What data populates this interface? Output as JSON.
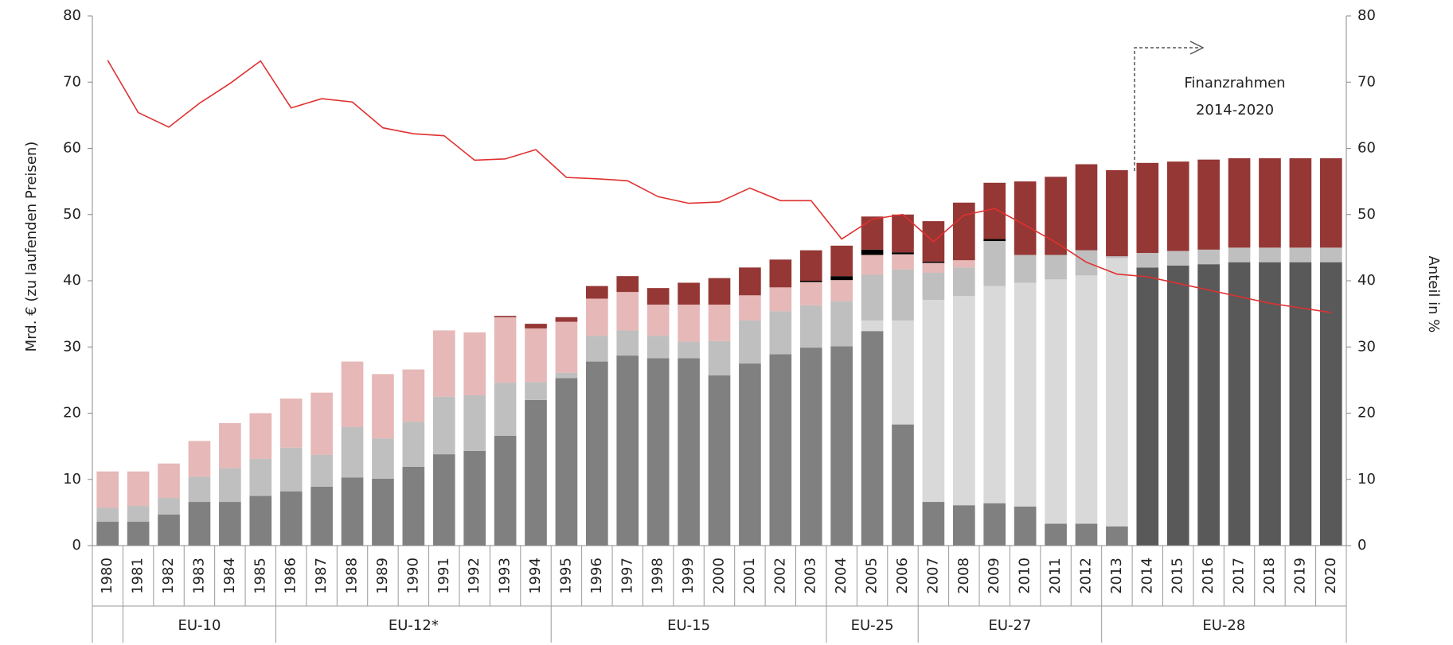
{
  "chart_data": {
    "type": "bar",
    "stacked": true,
    "y_label": "Mrd. € (zu laufenden Preisen)",
    "y2_label": "Anteil in %",
    "annotation": [
      "Finanzrahmen",
      "2014-2020"
    ],
    "categories": [
      "1980",
      "1981",
      "1982",
      "1983",
      "1984",
      "1985",
      "1986",
      "1987",
      "1988",
      "1989",
      "1990",
      "1991",
      "1992",
      "1993",
      "1994",
      "1995",
      "1996",
      "1997",
      "1998",
      "1999",
      "2000",
      "2001",
      "2002",
      "2003",
      "2004",
      "2005",
      "2006",
      "2007",
      "2008",
      "2009",
      "2010",
      "2011",
      "2012",
      "2013",
      "2014",
      "2015",
      "2016",
      "2017",
      "2018",
      "2019",
      "2020"
    ],
    "groups": [
      null,
      "EU-10",
      "EU-10",
      "EU-10",
      "EU-10",
      "EU-10",
      "EU-12*",
      "EU-12*",
      "EU-12*",
      "EU-12*",
      "EU-12*",
      "EU-12*",
      "EU-12*",
      "EU-12*",
      "EU-12*",
      "EU-15",
      "EU-15",
      "EU-15",
      "EU-15",
      "EU-15",
      "EU-15",
      "EU-15",
      "EU-15",
      "EU-15",
      "EU-25",
      "EU-25",
      "EU-25",
      "EU-27",
      "EU-27",
      "EU-27",
      "EU-27",
      "EU-27",
      "EU-27",
      "EU-28",
      "EU-28",
      "EU-28",
      "EU-28",
      "EU-28",
      "EU-28",
      "EU-28",
      "EU-28"
    ],
    "ylim": [
      0,
      80
    ],
    "yticks": [
      0,
      10,
      20,
      30,
      40,
      50,
      60,
      70,
      80
    ],
    "y2lim": [
      0,
      80
    ],
    "y2ticks": [
      0,
      10,
      20,
      30,
      40,
      50,
      60,
      70,
      80
    ],
    "series": [
      {
        "color": "#808080",
        "values": [
          3.6,
          3.6,
          4.7,
          6.6,
          6.6,
          7.5,
          8.2,
          8.9,
          10.3,
          10.1,
          11.9,
          13.8,
          14.3,
          16.6,
          22.0,
          25.3,
          27.8,
          28.7,
          28.3,
          28.3,
          25.7,
          27.5,
          28.9,
          29.9,
          30.1,
          32.4,
          18.3,
          6.6,
          6.1,
          6.4,
          5.9,
          3.3,
          3.3,
          2.9,
          null,
          null,
          null,
          null,
          null,
          null,
          null
        ]
      },
      {
        "color": "#d9d9d9",
        "values": [
          null,
          null,
          null,
          null,
          null,
          null,
          null,
          null,
          null,
          null,
          null,
          null,
          null,
          null,
          null,
          null,
          null,
          null,
          null,
          null,
          null,
          null,
          null,
          null,
          null,
          1.6,
          15.7,
          30.5,
          31.6,
          32.8,
          33.8,
          36.9,
          37.5,
          40.5,
          null,
          null,
          null,
          null,
          null,
          null,
          null
        ]
      },
      {
        "color": "#595959",
        "values": [
          null,
          null,
          null,
          null,
          null,
          null,
          null,
          null,
          null,
          null,
          null,
          null,
          null,
          null,
          null,
          null,
          null,
          null,
          null,
          null,
          null,
          null,
          null,
          null,
          null,
          null,
          null,
          null,
          null,
          null,
          null,
          null,
          null,
          null,
          42.0,
          42.3,
          42.5,
          42.8,
          42.8,
          42.8,
          42.8
        ]
      },
      {
        "color": "#bfbfbf",
        "values": [
          2.1,
          2.4,
          2.5,
          3.8,
          5.1,
          5.6,
          6.6,
          4.8,
          7.6,
          6.1,
          6.8,
          8.7,
          8.4,
          8.0,
          2.7,
          0.8,
          3.9,
          3.8,
          3.4,
          2.5,
          5.2,
          6.5,
          6.5,
          6.4,
          6.8,
          6.9,
          7.7,
          4.1,
          4.3,
          6.8,
          4.2,
          3.7,
          3.8,
          0.3,
          2.2,
          2.2,
          2.2,
          2.2,
          2.2,
          2.2,
          2.2
        ]
      },
      {
        "color": "#e6b8b7",
        "values": [
          5.5,
          5.2,
          5.2,
          5.4,
          6.8,
          6.9,
          7.4,
          9.4,
          9.9,
          9.7,
          7.9,
          10.0,
          9.5,
          9.9,
          8.1,
          7.7,
          5.6,
          5.8,
          4.7,
          5.6,
          5.5,
          3.8,
          3.6,
          3.5,
          3.2,
          3.0,
          2.3,
          1.5,
          1.1,
          null,
          null,
          null,
          null,
          null,
          null,
          null,
          null,
          null,
          null,
          null,
          null
        ]
      },
      {
        "color": "#000000",
        "values": [
          null,
          null,
          null,
          null,
          null,
          null,
          null,
          null,
          null,
          null,
          null,
          null,
          null,
          null,
          null,
          null,
          null,
          null,
          null,
          null,
          null,
          null,
          null,
          0.2,
          0.6,
          0.8,
          0.3,
          0.2,
          null,
          0.3,
          null,
          null,
          null,
          null,
          null,
          null,
          null,
          null,
          null,
          null,
          null
        ]
      },
      {
        "color": "#953735",
        "values": [
          null,
          null,
          null,
          null,
          null,
          null,
          null,
          null,
          null,
          null,
          null,
          null,
          null,
          0.2,
          0.7,
          0.7,
          1.9,
          2.4,
          2.5,
          3.3,
          4.0,
          4.2,
          4.2,
          4.6,
          4.6,
          5.0,
          5.7,
          6.1,
          8.7,
          8.5,
          11.1,
          11.8,
          13.0,
          13.0,
          13.6,
          13.5,
          13.6,
          13.5,
          13.5,
          13.5,
          13.5
        ]
      },
      {
        "type": "line",
        "axis": "y2",
        "color": "#e03030",
        "values": [
          73.3,
          65.4,
          63.2,
          66.8,
          69.8,
          73.2,
          66.1,
          67.5,
          67.0,
          63.1,
          62.2,
          61.9,
          58.2,
          58.4,
          59.8,
          55.6,
          55.4,
          55.1,
          52.7,
          51.7,
          51.9,
          54.0,
          52.1,
          52.1,
          46.3,
          49.3,
          50.0,
          45.9,
          49.9,
          50.9,
          48.4,
          45.8,
          42.8,
          41.0,
          40.6,
          39.6,
          38.6,
          37.6,
          36.6,
          35.9,
          35.2
        ]
      }
    ]
  }
}
